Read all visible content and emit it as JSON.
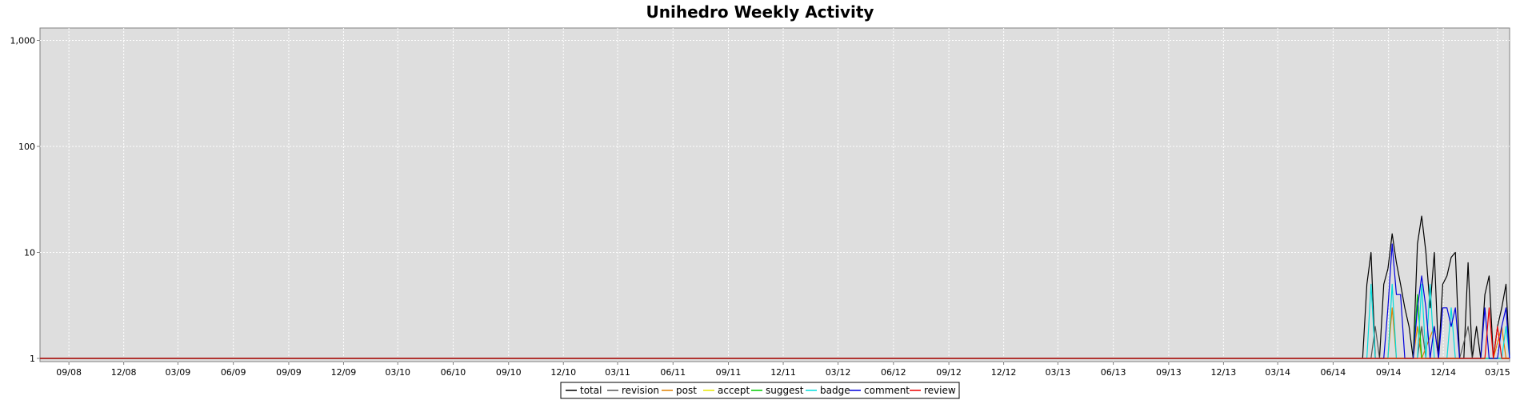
{
  "chart_data": {
    "type": "line",
    "title": "Unihedro Weekly Activity",
    "xlabel": "",
    "ylabel": "",
    "y_scale": "log",
    "ylim": [
      1,
      1200
    ],
    "y_ticks": [
      {
        "value": 1,
        "label": "1"
      },
      {
        "value": 10,
        "label": "10"
      },
      {
        "value": 100,
        "label": "100"
      },
      {
        "value": 1000,
        "label": "1,000"
      }
    ],
    "xlim": [
      "2008-07-15",
      "2015-03-21"
    ],
    "x_ticks": [
      {
        "date": "2008-09-01",
        "label": "09/08"
      },
      {
        "date": "2008-12-01",
        "label": "12/08"
      },
      {
        "date": "2009-03-01",
        "label": "03/09"
      },
      {
        "date": "2009-06-01",
        "label": "06/09"
      },
      {
        "date": "2009-09-01",
        "label": "09/09"
      },
      {
        "date": "2009-12-01",
        "label": "12/09"
      },
      {
        "date": "2010-03-01",
        "label": "03/10"
      },
      {
        "date": "2010-06-01",
        "label": "06/10"
      },
      {
        "date": "2010-09-01",
        "label": "09/10"
      },
      {
        "date": "2010-12-01",
        "label": "12/10"
      },
      {
        "date": "2011-03-01",
        "label": "03/11"
      },
      {
        "date": "2011-06-01",
        "label": "06/11"
      },
      {
        "date": "2011-09-01",
        "label": "09/11"
      },
      {
        "date": "2011-12-01",
        "label": "12/11"
      },
      {
        "date": "2012-03-01",
        "label": "03/12"
      },
      {
        "date": "2012-06-01",
        "label": "06/12"
      },
      {
        "date": "2012-09-01",
        "label": "09/12"
      },
      {
        "date": "2012-12-01",
        "label": "12/12"
      },
      {
        "date": "2013-03-01",
        "label": "03/13"
      },
      {
        "date": "2013-06-01",
        "label": "06/13"
      },
      {
        "date": "2013-09-01",
        "label": "09/13"
      },
      {
        "date": "2013-12-01",
        "label": "12/13"
      },
      {
        "date": "2014-03-01",
        "label": "03/14"
      },
      {
        "date": "2014-06-01",
        "label": "06/14"
      },
      {
        "date": "2014-09-01",
        "label": "09/14"
      },
      {
        "date": "2014-12-01",
        "label": "12/14"
      },
      {
        "date": "2015-03-01",
        "label": "03/15"
      }
    ],
    "grid": true,
    "legend_position": "bottom",
    "series": [
      {
        "name": "total",
        "color": "#000000",
        "points": [
          [
            "2008-07-15",
            1
          ],
          [
            "2014-07-20",
            1
          ],
          [
            "2014-07-27",
            5
          ],
          [
            "2014-08-03",
            10
          ],
          [
            "2014-08-10",
            1
          ],
          [
            "2014-08-17",
            1
          ],
          [
            "2014-08-24",
            5
          ],
          [
            "2014-08-31",
            7
          ],
          [
            "2014-09-07",
            15
          ],
          [
            "2014-09-14",
            8
          ],
          [
            "2014-09-21",
            5
          ],
          [
            "2014-09-28",
            3
          ],
          [
            "2014-10-05",
            2
          ],
          [
            "2014-10-12",
            1
          ],
          [
            "2014-10-19",
            12
          ],
          [
            "2014-10-26",
            22
          ],
          [
            "2014-11-02",
            10
          ],
          [
            "2014-11-09",
            3
          ],
          [
            "2014-11-16",
            10
          ],
          [
            "2014-11-23",
            1
          ],
          [
            "2014-11-30",
            5
          ],
          [
            "2014-12-07",
            6
          ],
          [
            "2014-12-14",
            9
          ],
          [
            "2014-12-21",
            10
          ],
          [
            "2014-12-28",
            1
          ],
          [
            "2015-01-04",
            1
          ],
          [
            "2015-01-11",
            8
          ],
          [
            "2015-01-18",
            1
          ],
          [
            "2015-01-25",
            2
          ],
          [
            "2015-02-01",
            1
          ],
          [
            "2015-02-08",
            4
          ],
          [
            "2015-02-15",
            6
          ],
          [
            "2015-02-22",
            1
          ],
          [
            "2015-03-01",
            2
          ],
          [
            "2015-03-08",
            3
          ],
          [
            "2015-03-15",
            5
          ],
          [
            "2015-03-21",
            1
          ]
        ]
      },
      {
        "name": "revision",
        "color": "#555555",
        "points": [
          [
            "2008-07-15",
            1
          ],
          [
            "2014-08-03",
            1
          ],
          [
            "2014-08-10",
            2
          ],
          [
            "2014-08-17",
            1
          ],
          [
            "2014-10-19",
            1
          ],
          [
            "2014-10-26",
            2
          ],
          [
            "2014-11-02",
            1
          ],
          [
            "2014-12-28",
            1
          ],
          [
            "2015-01-11",
            2
          ],
          [
            "2015-01-18",
            1
          ],
          [
            "2015-03-21",
            1
          ]
        ]
      },
      {
        "name": "post",
        "color": "#e08000",
        "points": [
          [
            "2008-07-15",
            1
          ],
          [
            "2014-08-31",
            1
          ],
          [
            "2014-09-07",
            3
          ],
          [
            "2014-09-14",
            1
          ],
          [
            "2014-10-12",
            1
          ],
          [
            "2014-10-19",
            2
          ],
          [
            "2014-10-26",
            1
          ],
          [
            "2014-11-16",
            2
          ],
          [
            "2014-11-23",
            1
          ],
          [
            "2015-02-22",
            1
          ],
          [
            "2015-03-08",
            2
          ],
          [
            "2015-03-15",
            1
          ],
          [
            "2015-03-21",
            1
          ]
        ]
      },
      {
        "name": "accept",
        "color": "#e8e800",
        "points": [
          [
            "2008-07-15",
            1
          ],
          [
            "2015-03-21",
            1
          ]
        ]
      },
      {
        "name": "suggest",
        "color": "#00cc00",
        "points": [
          [
            "2008-07-15",
            1
          ],
          [
            "2014-10-12",
            1
          ],
          [
            "2014-10-19",
            4
          ],
          [
            "2014-10-26",
            1
          ],
          [
            "2015-03-21",
            1
          ]
        ]
      },
      {
        "name": "badge",
        "color": "#00dddd",
        "points": [
          [
            "2008-07-15",
            1
          ],
          [
            "2014-07-27",
            1
          ],
          [
            "2014-08-03",
            5
          ],
          [
            "2014-08-10",
            1
          ],
          [
            "2014-08-31",
            1
          ],
          [
            "2014-09-07",
            5
          ],
          [
            "2014-09-14",
            1
          ],
          [
            "2014-10-19",
            1
          ],
          [
            "2014-10-26",
            5
          ],
          [
            "2014-11-02",
            1
          ],
          [
            "2014-11-09",
            5
          ],
          [
            "2014-11-16",
            1
          ],
          [
            "2014-12-07",
            1
          ],
          [
            "2014-12-14",
            3
          ],
          [
            "2014-12-21",
            1
          ],
          [
            "2015-03-08",
            1
          ],
          [
            "2015-03-15",
            2
          ],
          [
            "2015-03-21",
            1
          ]
        ]
      },
      {
        "name": "comment",
        "color": "#0000dd",
        "points": [
          [
            "2008-07-15",
            1
          ],
          [
            "2014-08-24",
            1
          ],
          [
            "2014-08-31",
            3
          ],
          [
            "2014-09-07",
            12
          ],
          [
            "2014-09-14",
            4
          ],
          [
            "2014-09-21",
            4
          ],
          [
            "2014-09-28",
            1
          ],
          [
            "2014-10-12",
            1
          ],
          [
            "2014-10-19",
            3
          ],
          [
            "2014-10-26",
            6
          ],
          [
            "2014-11-02",
            3
          ],
          [
            "2014-11-09",
            1
          ],
          [
            "2014-11-16",
            2
          ],
          [
            "2014-11-23",
            1
          ],
          [
            "2014-11-30",
            3
          ],
          [
            "2014-12-07",
            3
          ],
          [
            "2014-12-14",
            2
          ],
          [
            "2014-12-21",
            3
          ],
          [
            "2014-12-28",
            1
          ],
          [
            "2015-02-01",
            1
          ],
          [
            "2015-02-08",
            3
          ],
          [
            "2015-02-15",
            1
          ],
          [
            "2015-03-01",
            1
          ],
          [
            "2015-03-08",
            2
          ],
          [
            "2015-03-15",
            3
          ],
          [
            "2015-03-21",
            1
          ]
        ]
      },
      {
        "name": "review",
        "color": "#ee0000",
        "points": [
          [
            "2008-07-15",
            1
          ],
          [
            "2015-02-08",
            1
          ],
          [
            "2015-02-15",
            3
          ],
          [
            "2015-02-22",
            1
          ],
          [
            "2015-03-01",
            2
          ],
          [
            "2015-03-08",
            1
          ],
          [
            "2015-03-21",
            1
          ]
        ]
      }
    ]
  }
}
